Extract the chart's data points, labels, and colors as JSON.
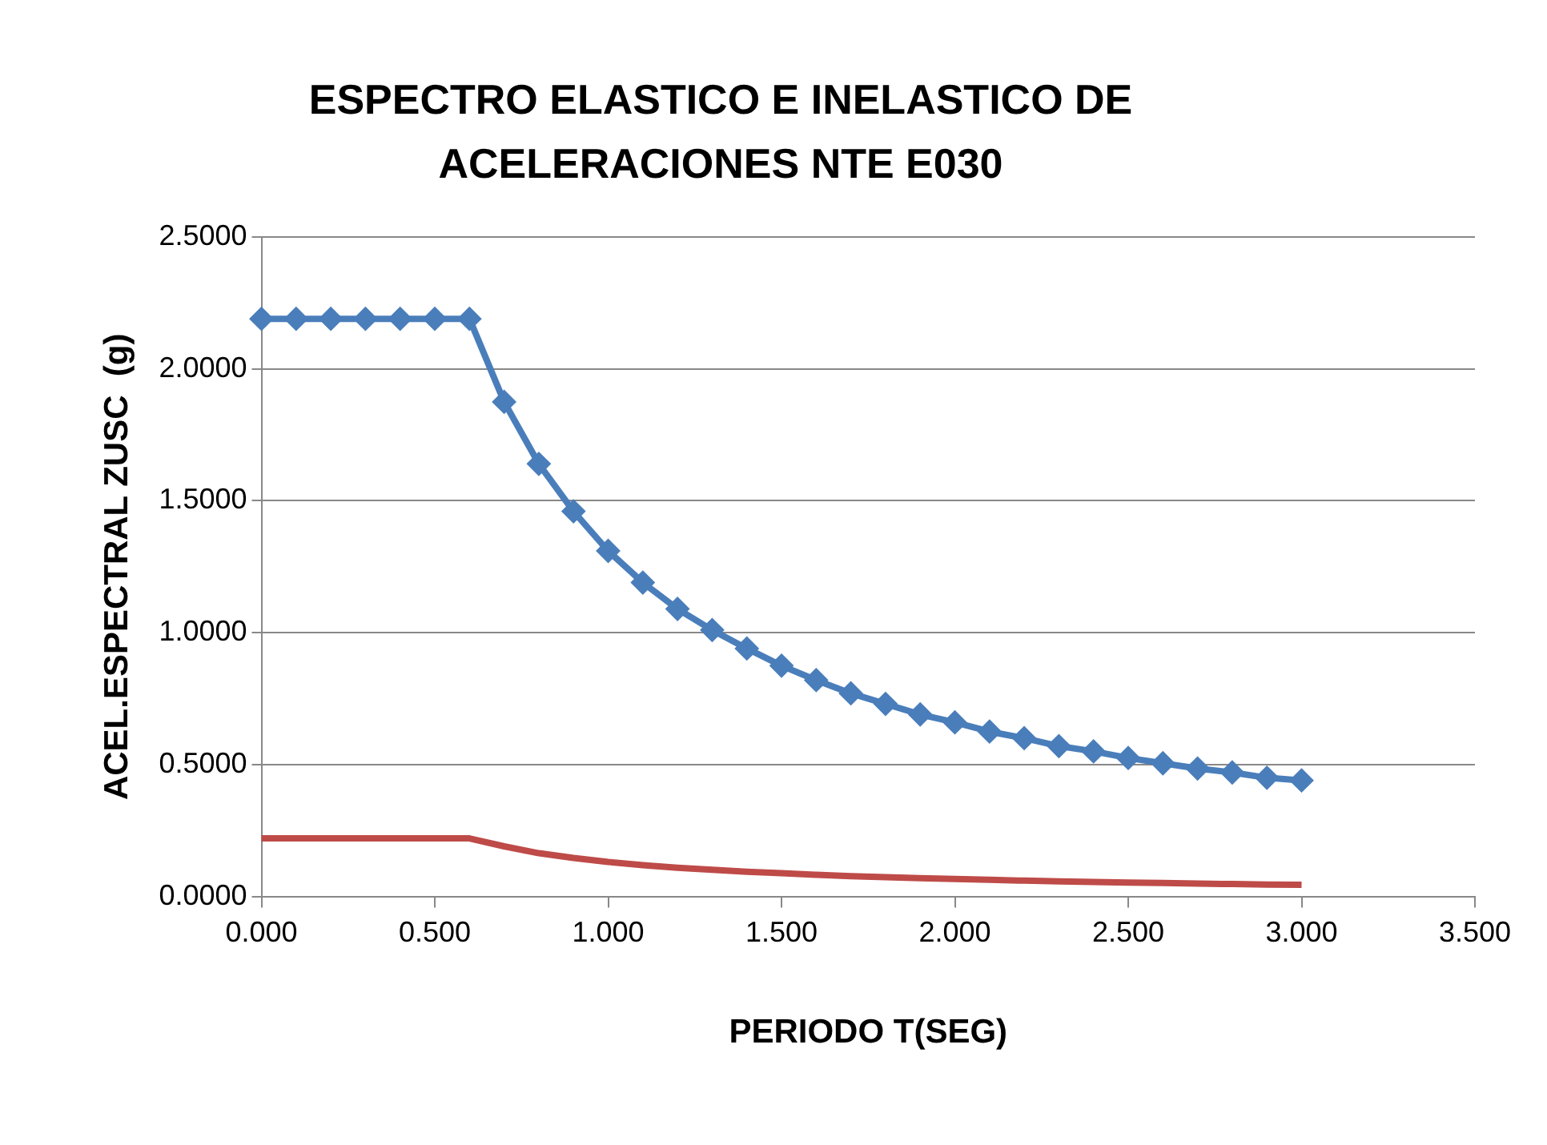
{
  "chart_data": {
    "type": "line",
    "title": "ESPECTRO ELASTICO E INELASTICO DE ACELERACIONES NTE E030",
    "xlabel": "PERIODO T(SEG)",
    "ylabel": "ACEL.ESPECTRAL ZUSC  (g)",
    "x": [
      0,
      0.1,
      0.2,
      0.3,
      0.4,
      0.5,
      0.6,
      0.7,
      0.8,
      0.9,
      1.0,
      1.1,
      1.2,
      1.3,
      1.4,
      1.5,
      1.6,
      1.7,
      1.8,
      1.9,
      2.0,
      2.1,
      2.2,
      2.3,
      2.4,
      2.5,
      2.6,
      2.7,
      2.8,
      2.9,
      3.0
    ],
    "series": [
      {
        "color": "#4a7ebb",
        "marker": "diamond",
        "values": [
          2.19,
          2.19,
          2.19,
          2.19,
          2.19,
          2.19,
          2.19,
          1.875,
          1.64,
          1.46,
          1.31,
          1.19,
          1.09,
          1.01,
          0.94,
          0.875,
          0.82,
          0.77,
          0.73,
          0.69,
          0.66,
          0.625,
          0.6,
          0.57,
          0.55,
          0.525,
          0.505,
          0.485,
          0.47,
          0.45,
          0.44
        ]
      },
      {
        "color": "#be4b48",
        "marker": "none",
        "values": [
          0.22,
          0.22,
          0.22,
          0.22,
          0.22,
          0.22,
          0.22,
          0.19,
          0.164,
          0.146,
          0.131,
          0.119,
          0.109,
          0.101,
          0.094,
          0.088,
          0.082,
          0.077,
          0.073,
          0.069,
          0.066,
          0.063,
          0.06,
          0.057,
          0.055,
          0.053,
          0.051,
          0.049,
          0.047,
          0.045,
          0.044
        ]
      }
    ],
    "xlim": [
      0,
      3.5
    ],
    "xticks": [
      {
        "value": 0,
        "label": "0.000"
      },
      {
        "value": 0.5,
        "label": "0.500"
      },
      {
        "value": 1,
        "label": "1.000"
      },
      {
        "value": 1.5,
        "label": "1.500"
      },
      {
        "value": 2,
        "label": "2.000"
      },
      {
        "value": 2.5,
        "label": "2.500"
      },
      {
        "value": 3,
        "label": "3.000"
      },
      {
        "value": 3.5,
        "label": "3.500"
      }
    ],
    "ylim": [
      0,
      2.5
    ],
    "yticks": [
      {
        "value": 0,
        "label": "0.0000"
      },
      {
        "value": 0.5,
        "label": "0.5000"
      },
      {
        "value": 1,
        "label": "1.0000"
      },
      {
        "value": 1.5,
        "label": "1.5000"
      },
      {
        "value": 2,
        "label": "2.0000"
      },
      {
        "value": 2.5,
        "label": "2.5000"
      }
    ],
    "grid": "y",
    "legend": false
  }
}
